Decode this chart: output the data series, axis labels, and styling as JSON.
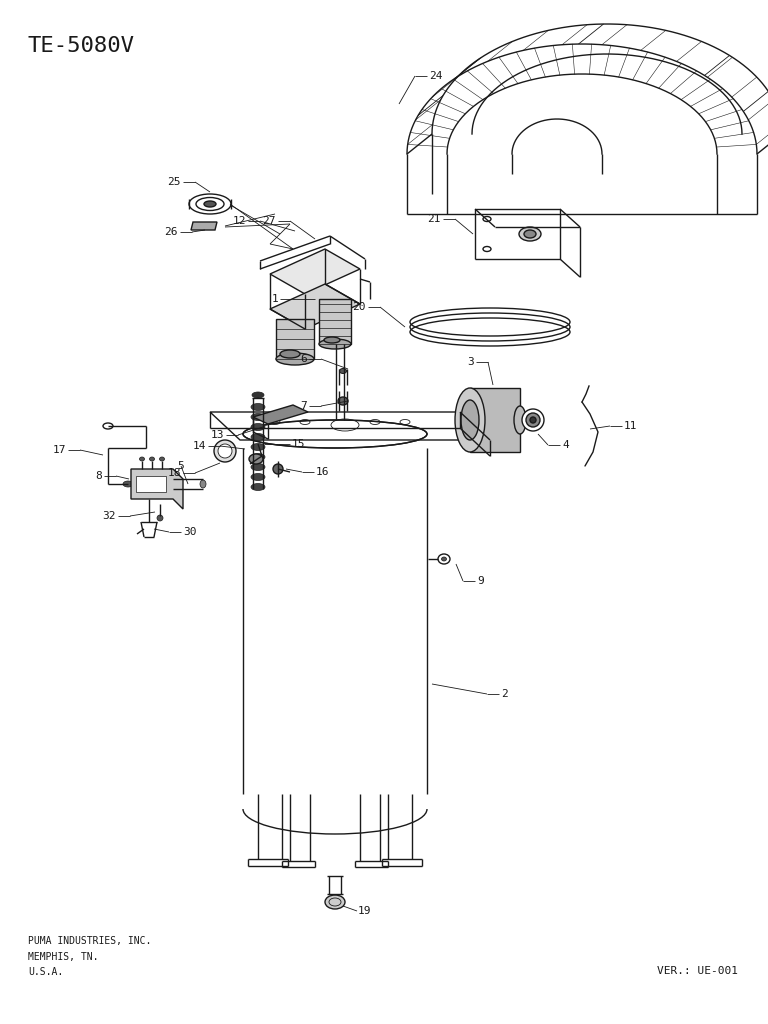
{
  "title": "TE-5080V",
  "bg_color": "#ffffff",
  "line_color": "#1a1a1a",
  "footer_left": "PUMA INDUSTRIES, INC.\nMEMPHIS, TN.\nU.S.A.",
  "footer_right": "VER.: UE-001",
  "title_fontsize": 16,
  "label_fontsize": 8,
  "footer_fontsize": 7
}
